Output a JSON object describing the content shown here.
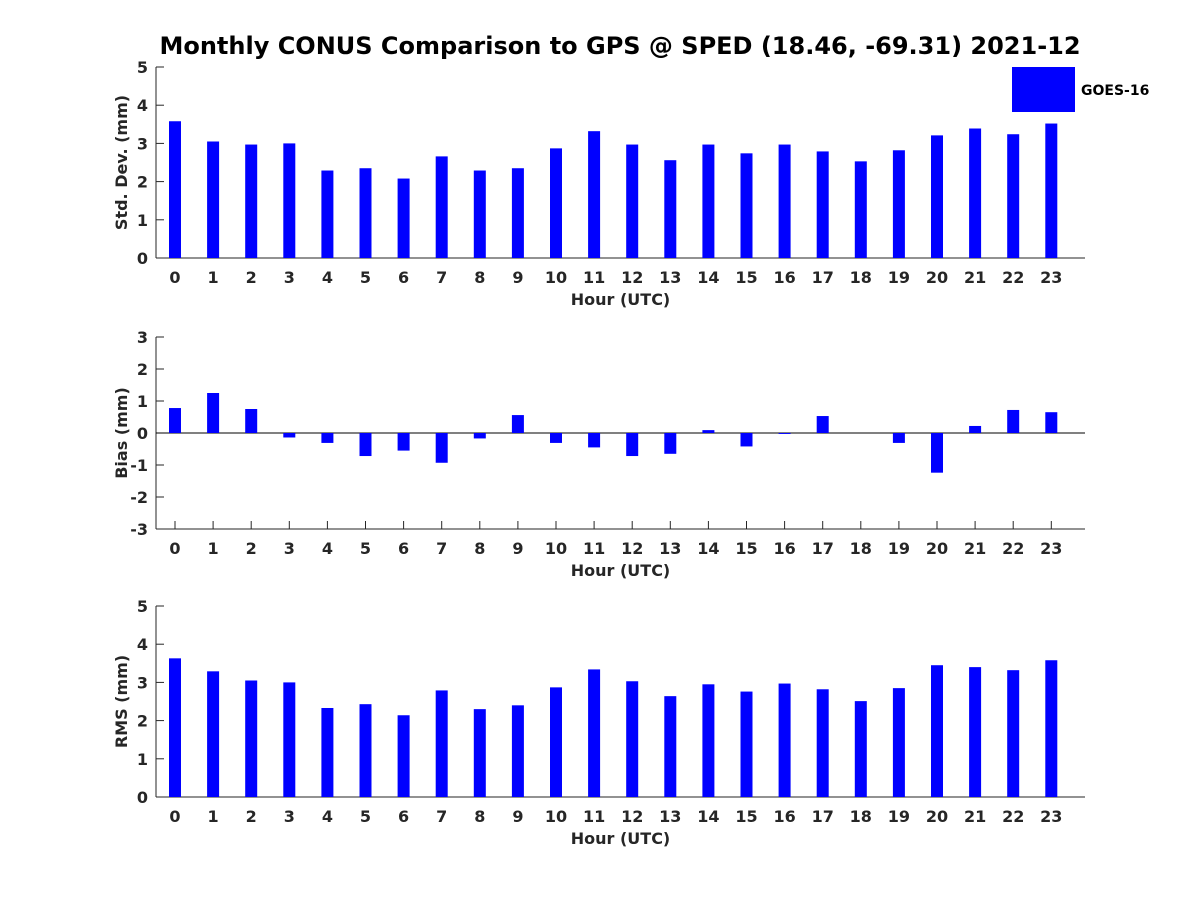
{
  "title": "Monthly CONUS Comparison to GPS @ SPED (18.46, -69.31) 2021-12",
  "bar_color": "#0000ff",
  "chart_data": [
    {
      "type": "bar",
      "ylabel": "Std. Dev. (mm)",
      "xlabel": "Hour (UTC)",
      "ylim": [
        0,
        5
      ],
      "yticks": [
        0,
        1,
        2,
        3,
        4,
        5
      ],
      "categories": [
        "0",
        "1",
        "2",
        "3",
        "4",
        "5",
        "6",
        "7",
        "8",
        "9",
        "10",
        "11",
        "12",
        "13",
        "14",
        "15",
        "16",
        "17",
        "18",
        "19",
        "20",
        "21",
        "22",
        "23"
      ],
      "series": [
        {
          "name": "GOES-16",
          "values": [
            3.58,
            3.05,
            2.97,
            3.0,
            2.29,
            2.35,
            2.08,
            2.66,
            2.29,
            2.35,
            2.87,
            3.32,
            2.97,
            2.56,
            2.97,
            2.74,
            2.97,
            2.79,
            2.53,
            2.82,
            3.21,
            3.39,
            3.24,
            3.52
          ]
        }
      ]
    },
    {
      "type": "bar",
      "ylabel": "Bias (mm)",
      "xlabel": "Hour (UTC)",
      "ylim": [
        -3,
        3
      ],
      "yticks": [
        -3,
        -2,
        -1,
        0,
        1,
        2,
        3
      ],
      "categories": [
        "0",
        "1",
        "2",
        "3",
        "4",
        "5",
        "6",
        "7",
        "8",
        "9",
        "10",
        "11",
        "12",
        "13",
        "14",
        "15",
        "16",
        "17",
        "18",
        "19",
        "20",
        "21",
        "22",
        "23"
      ],
      "series": [
        {
          "name": "GOES-16",
          "values": [
            0.78,
            1.25,
            0.75,
            -0.14,
            -0.31,
            -0.72,
            -0.55,
            -0.93,
            -0.17,
            0.56,
            -0.31,
            -0.45,
            -0.72,
            -0.65,
            0.09,
            -0.42,
            -0.03,
            0.53,
            0.0,
            -0.31,
            -1.24,
            0.22,
            0.72,
            0.65
          ]
        }
      ]
    },
    {
      "type": "bar",
      "ylabel": "RMS (mm)",
      "xlabel": "Hour (UTC)",
      "ylim": [
        0,
        5
      ],
      "yticks": [
        0,
        1,
        2,
        3,
        4,
        5
      ],
      "categories": [
        "0",
        "1",
        "2",
        "3",
        "4",
        "5",
        "6",
        "7",
        "8",
        "9",
        "10",
        "11",
        "12",
        "13",
        "14",
        "15",
        "16",
        "17",
        "18",
        "19",
        "20",
        "21",
        "22",
        "23"
      ],
      "series": [
        {
          "name": "GOES-16",
          "values": [
            3.63,
            3.29,
            3.05,
            3.0,
            2.33,
            2.43,
            2.14,
            2.79,
            2.3,
            2.4,
            2.87,
            3.34,
            3.03,
            2.64,
            2.95,
            2.76,
            2.97,
            2.82,
            2.51,
            2.85,
            3.45,
            3.4,
            3.32,
            3.58
          ]
        }
      ]
    }
  ],
  "legend": {
    "label": "GOES-16",
    "placement": "top-right"
  }
}
